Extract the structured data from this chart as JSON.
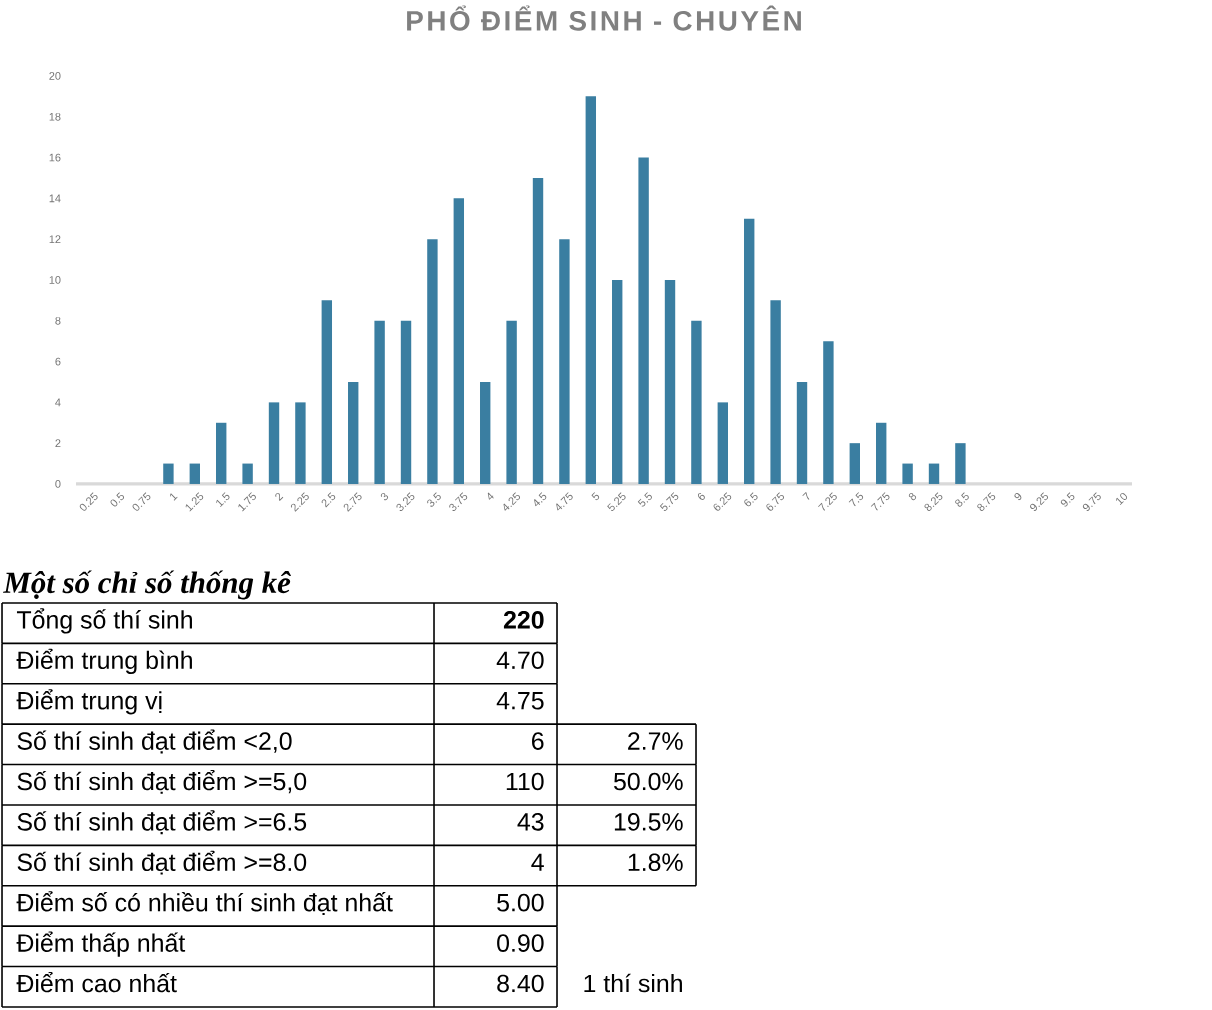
{
  "chart_data": [
    {
      "type": "bar",
      "title": "PHỔ ĐIỂM SINH - CHUYÊN",
      "categories": [
        "0.25",
        "0.5",
        "0.75",
        "1",
        "1.25",
        "1.5",
        "1.75",
        "2",
        "2.25",
        "2.5",
        "2.75",
        "3",
        "3.25",
        "3.5",
        "3.75",
        "4",
        "4.25",
        "4.5",
        "4.75",
        "5",
        "5.25",
        "5.5",
        "5.75",
        "6",
        "6.25",
        "6.5",
        "6.75",
        "7",
        "7.25",
        "7.5",
        "7.75",
        "8",
        "8.25",
        "8.5",
        "8.75",
        "9",
        "9.25",
        "9.5",
        "9.75",
        "10"
      ],
      "values": [
        0,
        0,
        0,
        1,
        1,
        3,
        1,
        4,
        4,
        9,
        5,
        8,
        8,
        12,
        14,
        5,
        8,
        15,
        12,
        19,
        10,
        16,
        10,
        8,
        4,
        13,
        9,
        5,
        7,
        2,
        3,
        1,
        1,
        2,
        0,
        0,
        0,
        0,
        0,
        0
      ],
      "color": "#3a7ea1",
      "ylim": [
        0,
        20
      ],
      "yticks": [
        0,
        2,
        4,
        6,
        8,
        10,
        12,
        14,
        16,
        18,
        20
      ]
    },
    {
      "type": "other",
      "title": "Một số chỉ số thống kê",
      "annotations": [
        "Tổng số thí sinh",
        "220",
        "Điểm trung bình",
        "4.70",
        "Điểm trung vị",
        "4.75",
        "Số thí sinh đạt điểm <2,0",
        "6",
        "2.7%",
        "Số thí sinh đạt điểm >=5,0",
        "110",
        "50.0%",
        "Số thí sinh đạt điểm >=6.5",
        "43",
        "19.5%",
        "Số thí sinh đạt điểm >=8.0",
        "4",
        "1.8%",
        "Điểm số có nhiều thí sinh đạt nhất",
        "5.00",
        "Điểm thấp nhất",
        "0.90",
        "Điểm cao nhất",
        "8.40",
        "1 thí sinh"
      ]
    }
  ]
}
